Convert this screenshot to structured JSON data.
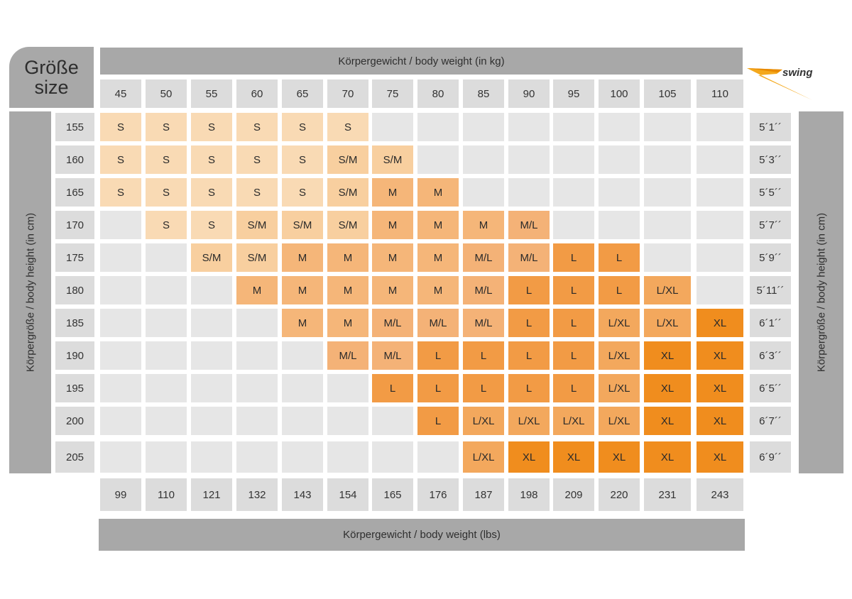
{
  "corner": {
    "line1": "Größe",
    "line2": "size"
  },
  "top_title": "Körpergewicht / body weight (in kg)",
  "bottom_title": "Körpergewicht / body weight (lbs)",
  "left_title": "Körpergröße / body height (in cm)",
  "right_title": "Körpergröße / body height (in cm)",
  "logo_text": "swing",
  "weights_kg": [
    "45",
    "50",
    "55",
    "60",
    "65",
    "70",
    "75",
    "80",
    "85",
    "90",
    "95",
    "100",
    "105",
    "110"
  ],
  "weights_lbs": [
    "99",
    "110",
    "121",
    "132",
    "143",
    "154",
    "165",
    "176",
    "187",
    "198",
    "209",
    "220",
    "231",
    "243"
  ],
  "heights_cm": [
    "155",
    "160",
    "165",
    "170",
    "175",
    "180",
    "185",
    "190",
    "195",
    "200",
    "205"
  ],
  "heights_ft": [
    "5´1´´",
    "5´3´´",
    "5´5´´",
    "5´7´´",
    "5´9´´",
    "5´11´´",
    "6´1´´",
    "6´3´´",
    "6´5´´",
    "6´7´´",
    "6´9´´"
  ],
  "size_colors": {
    "S": "#f9dab4",
    "S/M": "#f8cf9f",
    "M": "#f5b679",
    "M/L": "#f4b277",
    "L": "#f29b45",
    "L/XL": "#f3a85d",
    "XL": "#f08d1e"
  },
  "grid": [
    [
      "S",
      "S",
      "S",
      "S",
      "S",
      "S",
      "",
      "",
      "",
      "",
      "",
      "",
      "",
      ""
    ],
    [
      "S",
      "S",
      "S",
      "S",
      "S",
      "S/M",
      "S/M",
      "",
      "",
      "",
      "",
      "",
      "",
      ""
    ],
    [
      "S",
      "S",
      "S",
      "S",
      "S",
      "S/M",
      "M",
      "M",
      "",
      "",
      "",
      "",
      "",
      ""
    ],
    [
      "",
      "S",
      "S",
      "S/M",
      "S/M",
      "S/M",
      "M",
      "M",
      "M",
      "M/L",
      "",
      "",
      "",
      ""
    ],
    [
      "",
      "",
      "S/M",
      "S/M",
      "M",
      "M",
      "M",
      "M",
      "M/L",
      "M/L",
      "L",
      "L",
      "",
      ""
    ],
    [
      "",
      "",
      "",
      "M",
      "M",
      "M",
      "M",
      "M",
      "M/L",
      "L",
      "L",
      "L",
      "L/XL",
      ""
    ],
    [
      "",
      "",
      "",
      "",
      "M",
      "M",
      "M/L",
      "M/L",
      "M/L",
      "L",
      "L",
      "L/XL",
      "L/XL",
      "XL"
    ],
    [
      "",
      "",
      "",
      "",
      "",
      "M/L",
      "M/L",
      "L",
      "L",
      "L",
      "L",
      "L/XL",
      "XL",
      "XL"
    ],
    [
      "",
      "",
      "",
      "",
      "",
      "",
      "L",
      "L",
      "L",
      "L",
      "L",
      "L/XL",
      "XL",
      "XL"
    ],
    [
      "",
      "",
      "",
      "",
      "",
      "",
      "",
      "L",
      "L/XL",
      "L/XL",
      "L/XL",
      "L/XL",
      "XL",
      "XL"
    ],
    [
      "",
      "",
      "",
      "",
      "",
      "",
      "",
      "",
      "L/XL",
      "XL",
      "XL",
      "XL",
      "XL",
      "XL"
    ]
  ]
}
